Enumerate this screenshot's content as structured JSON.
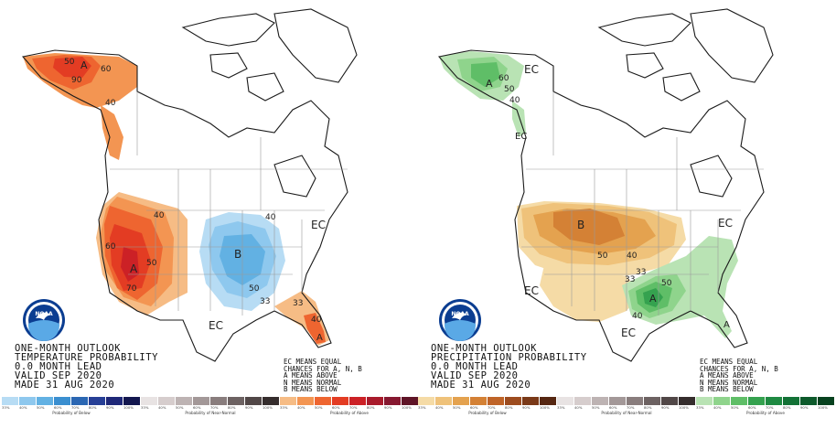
{
  "panels": [
    {
      "id": "temperature",
      "caption": [
        "ONE-MONTH OUTLOOK",
        "TEMPERATURE PROBABILITY",
        "0.0 MONTH LEAD",
        "VALID SEP 2020",
        "MADE 31 AUG 2020"
      ],
      "map_labels": {
        "alaska_a": "A",
        "alaska_90": "90",
        "alaska_60": "60",
        "alaska_50": "50",
        "alaska_40": "40",
        "west_a": "A",
        "west_60": "60",
        "west_50": "50",
        "west_40": "40",
        "west_70": "70",
        "central_b": "B",
        "central_40": "40",
        "central_50": "50",
        "central_33": "33",
        "ec_center": "EC",
        "ec_east": "EC",
        "florida_a": "A",
        "florida_33": "33",
        "florida_40": "40"
      },
      "scales": [
        {
          "title": "Probability of Below",
          "ticks": [
            "33%",
            "40%",
            "50%",
            "60%",
            "70%",
            "80%",
            "90%",
            "100%"
          ],
          "colors": [
            "#b7dcf4",
            "#8ec8ee",
            "#62b1e3",
            "#3b8fd0",
            "#2b67b3",
            "#273f96",
            "#1f2878",
            "#13174f"
          ]
        },
        {
          "title": "Probability of Near-Normal",
          "ticks": [
            "33%",
            "40%",
            "50%",
            "60%",
            "70%",
            "80%",
            "90%",
            "100%"
          ],
          "colors": [
            "#e8e3e3",
            "#d6cdcd",
            "#bdb3b3",
            "#a39898",
            "#897d7d",
            "#6d6262",
            "#514747",
            "#352d2d"
          ]
        },
        {
          "title": "Probability of Above",
          "ticks": [
            "33%",
            "40%",
            "50%",
            "60%",
            "70%",
            "80%",
            "90%",
            "100%"
          ],
          "colors": [
            "#f6bc85",
            "#f39552",
            "#ee6530",
            "#e33c23",
            "#cc2126",
            "#a91b2c",
            "#861830",
            "#5f1427"
          ]
        }
      ]
    },
    {
      "id": "precipitation",
      "caption": [
        "ONE-MONTH OUTLOOK",
        "PRECIPITATION PROBABILITY",
        "0.0 MONTH LEAD",
        "VALID SEP 2020",
        "MADE 31 AUG 2020"
      ],
      "map_labels": {
        "alaska_a": "A",
        "alaska_60": "60",
        "alaska_50": "50",
        "alaska_40": "40",
        "ec_alaska": "EC",
        "ec_canada_west": "EC",
        "north_b": "B",
        "north_50": "50",
        "north_40": "40",
        "north_33": "33",
        "ec_west": "EC",
        "ec_gulf": "EC",
        "ec_ne": "EC",
        "se_a": "A",
        "se_a2": "A",
        "se_33": "33",
        "se_40": "40",
        "se_50": "50"
      },
      "scales": [
        {
          "title": "Probability of Below",
          "ticks": [
            "33%",
            "40%",
            "50%",
            "60%",
            "70%",
            "80%",
            "90%",
            "100%"
          ],
          "colors": [
            "#f5dba6",
            "#efc27a",
            "#e4a24f",
            "#d48135",
            "#bf6428",
            "#9d4c1f",
            "#7a3918",
            "#562712"
          ]
        },
        {
          "title": "Probability of Near-Normal",
          "ticks": [
            "33%",
            "40%",
            "50%",
            "60%",
            "70%",
            "80%",
            "90%",
            "100%"
          ],
          "colors": [
            "#e8e3e3",
            "#d6cdcd",
            "#bdb3b3",
            "#a39898",
            "#897d7d",
            "#6d6262",
            "#514747",
            "#352d2d"
          ]
        },
        {
          "title": "Probability of Above",
          "ticks": [
            "33%",
            "40%",
            "50%",
            "60%",
            "70%",
            "80%",
            "90%",
            "100%"
          ],
          "colors": [
            "#b9e3b4",
            "#8fd48c",
            "#5fbe67",
            "#35a24f",
            "#1f8a42",
            "#137236",
            "#0d5a2b",
            "#07421f"
          ]
        }
      ]
    }
  ],
  "legend_note": [
    "EC MEANS EQUAL",
    "CHANCES FOR A, N, B",
    "A MEANS ABOVE",
    "N MEANS NORMAL",
    "B MEANS BELOW"
  ],
  "logo": {
    "text": "NOAA",
    "colors": {
      "outer": "#0b3d91",
      "inner": "#5aa9e6",
      "bird": "#ffffff"
    }
  },
  "colors": {
    "border": "#1a1a1a",
    "state_line": "#9a9a9a"
  }
}
